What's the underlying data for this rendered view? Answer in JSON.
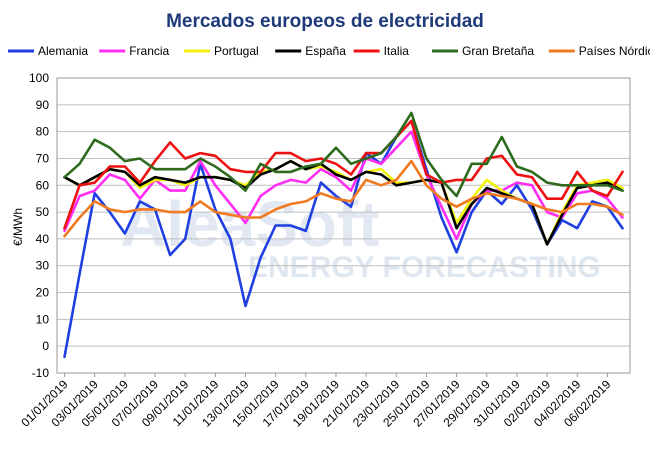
{
  "chart_data": {
    "type": "line",
    "title": "Mercados europeos de electricidad",
    "ylabel": "€/MWh",
    "xlabel": "",
    "ylim": [
      -10,
      100
    ],
    "yticks": [
      -10,
      0,
      10,
      20,
      30,
      40,
      50,
      60,
      70,
      80,
      90,
      100
    ],
    "grid": true,
    "legend_position": "top",
    "watermark": {
      "main": "AleaSoft",
      "sub": "ENERGY FORECASTING"
    },
    "x": [
      "01/01/2019",
      "02/01/2019",
      "03/01/2019",
      "04/01/2019",
      "05/01/2019",
      "06/01/2019",
      "07/01/2019",
      "08/01/2019",
      "09/01/2019",
      "10/01/2019",
      "11/01/2019",
      "12/01/2019",
      "13/01/2019",
      "14/01/2019",
      "15/01/2019",
      "16/01/2019",
      "17/01/2019",
      "18/01/2019",
      "19/01/2019",
      "20/01/2019",
      "21/01/2019",
      "22/01/2019",
      "23/01/2019",
      "24/01/2019",
      "25/01/2019",
      "26/01/2019",
      "27/01/2019",
      "28/01/2019",
      "29/01/2019",
      "30/01/2019",
      "31/01/2019",
      "01/02/2019",
      "02/02/2019",
      "03/02/2019",
      "04/02/2019",
      "05/02/2019",
      "06/02/2019",
      "07/02/2019"
    ],
    "xtick_labels": [
      "01/01/2019",
      "03/01/2019",
      "05/01/2019",
      "07/01/2019",
      "09/01/2019",
      "11/01/2019",
      "13/01/2019",
      "15/01/2019",
      "17/01/2019",
      "19/01/2019",
      "21/01/2019",
      "23/01/2019",
      "25/01/2019",
      "27/01/2019",
      "29/01/2019",
      "31/01/2019",
      "02/02/2019",
      "04/02/2019",
      "06/02/2019"
    ],
    "series": [
      {
        "name": "Alemania",
        "color": "#1f3fe0",
        "values": [
          -4,
          27,
          57,
          50,
          42,
          54,
          51,
          34,
          40,
          68,
          51,
          40,
          15,
          33,
          45,
          45,
          43,
          61,
          56,
          52,
          72,
          68,
          78,
          84,
          66,
          48,
          35,
          50,
          58,
          53,
          60,
          51,
          38,
          47,
          44,
          54,
          52,
          44
        ]
      },
      {
        "name": "Francia",
        "color": "#ff2ef2",
        "values": [
          43,
          56,
          58,
          64,
          62,
          55,
          62,
          58,
          58,
          69,
          60,
          53,
          46,
          56,
          60,
          62,
          61,
          66,
          63,
          58,
          70,
          68,
          74,
          80,
          64,
          52,
          40,
          53,
          58,
          58,
          61,
          60,
          50,
          48,
          57,
          58,
          55,
          48
        ]
      },
      {
        "name": "Portugal",
        "color": "#f2f20a",
        "values": [
          63,
          60,
          63,
          66,
          65,
          59,
          62,
          62,
          60,
          63,
          63,
          62,
          60,
          65,
          66,
          69,
          66,
          67,
          65,
          62,
          65,
          66,
          61,
          61,
          62,
          61,
          46,
          55,
          62,
          58,
          55,
          53,
          38,
          50,
          60,
          61,
          62,
          59
        ]
      },
      {
        "name": "España",
        "color": "#000000",
        "values": [
          63,
          60,
          63,
          66,
          65,
          60,
          63,
          62,
          61,
          63,
          63,
          62,
          59,
          64,
          66,
          69,
          66,
          68,
          64,
          62,
          65,
          64,
          60,
          61,
          62,
          61,
          44,
          53,
          59,
          57,
          55,
          53,
          38,
          49,
          59,
          60,
          61,
          58
        ]
      },
      {
        "name": "Italia",
        "color": "#ee1111",
        "values": [
          44,
          60,
          61,
          67,
          67,
          61,
          69,
          76,
          70,
          72,
          71,
          66,
          65,
          65,
          72,
          72,
          69,
          70,
          68,
          64,
          72,
          72,
          78,
          84,
          64,
          61,
          62,
          62,
          70,
          71,
          64,
          63,
          55,
          55,
          65,
          58,
          56,
          65
        ]
      },
      {
        "name": "Gran Bretaña",
        "color": "#2e6b1e",
        "values": [
          63,
          68,
          77,
          74,
          69,
          70,
          66,
          66,
          66,
          70,
          67,
          63,
          58,
          68,
          65,
          65,
          67,
          68,
          74,
          68,
          70,
          72,
          78,
          87,
          70,
          62,
          56,
          68,
          68,
          78,
          67,
          65,
          61,
          60,
          60,
          60,
          60,
          58
        ]
      },
      {
        "name": "Países Nórdicos",
        "color": "#f07a20",
        "values": [
          41,
          48,
          54,
          51,
          50,
          51,
          51,
          50,
          50,
          54,
          50,
          49,
          48,
          48,
          51,
          53,
          54,
          57,
          55,
          54,
          62,
          60,
          62,
          69,
          60,
          55,
          52,
          55,
          57,
          56,
          55,
          53,
          51,
          50,
          53,
          53,
          52,
          49
        ]
      }
    ]
  }
}
